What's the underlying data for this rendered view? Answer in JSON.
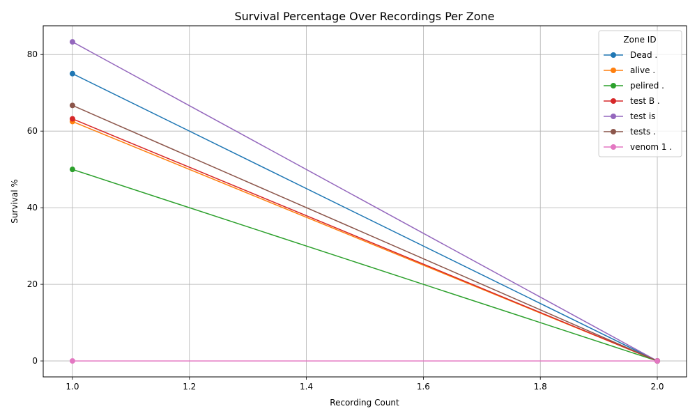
{
  "chart_data": {
    "type": "line",
    "title": "Survival Percentage Over Recordings Per Zone",
    "xlabel": "Recording Count",
    "ylabel": "Survival %",
    "xlim": [
      0.95,
      2.05
    ],
    "ylim": [
      -4.17,
      87.5
    ],
    "xticks": [
      "1.0",
      "1.2",
      "1.4",
      "1.6",
      "1.8",
      "2.0"
    ],
    "yticks": [
      "0",
      "20",
      "40",
      "60",
      "80"
    ],
    "grid": true,
    "legend_title": "Zone ID",
    "legend_position": "top-right",
    "series": [
      {
        "name": "Dead .",
        "color": "#1f77b4",
        "x": [
          1.0,
          2.0
        ],
        "y": [
          75.0,
          0.0
        ]
      },
      {
        "name": "alive .",
        "color": "#ff7f0e",
        "x": [
          1.0,
          2.0
        ],
        "y": [
          62.5,
          0.0
        ]
      },
      {
        "name": "pelired .",
        "color": "#2ca02c",
        "x": [
          1.0,
          2.0
        ],
        "y": [
          50.0,
          0.0
        ]
      },
      {
        "name": "test B .",
        "color": "#d62728",
        "x": [
          1.0,
          2.0
        ],
        "y": [
          63.2,
          0.0
        ]
      },
      {
        "name": "test is",
        "color": "#9467bd",
        "x": [
          1.0,
          2.0
        ],
        "y": [
          83.3,
          0.0
        ]
      },
      {
        "name": "tests .",
        "color": "#8c564b",
        "x": [
          1.0,
          2.0
        ],
        "y": [
          66.7,
          0.0
        ]
      },
      {
        "name": "venom 1 .",
        "color": "#e377c2",
        "x": [
          1.0,
          2.0
        ],
        "y": [
          0.0,
          0.0
        ]
      }
    ]
  }
}
